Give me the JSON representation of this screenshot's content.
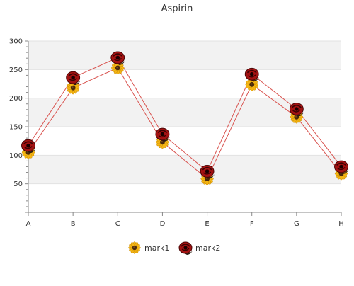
{
  "chart_data": {
    "type": "line",
    "title": "Aspirin",
    "xlabel": "",
    "ylabel": "",
    "categories": [
      "A",
      "B",
      "C",
      "D",
      "E",
      "F",
      "G",
      "H"
    ],
    "ylim": [
      0,
      300
    ],
    "yticks": [
      50,
      100,
      150,
      200,
      250,
      300
    ],
    "grid": true,
    "legend_position": "bottom",
    "series": [
      {
        "name": "mark1",
        "values": [
          105,
          218,
          253,
          123,
          59,
          224,
          167,
          68
        ],
        "color": "#d9534f",
        "marker": "sunflower-icon"
      },
      {
        "name": "mark2",
        "values": [
          117,
          236,
          271,
          137,
          72,
          242,
          181,
          80
        ],
        "color": "#d9534f",
        "marker": "rose-icon"
      }
    ],
    "colors": {
      "band": "#f2f2f2",
      "axis": "#888888",
      "line": "#d9534f"
    }
  }
}
